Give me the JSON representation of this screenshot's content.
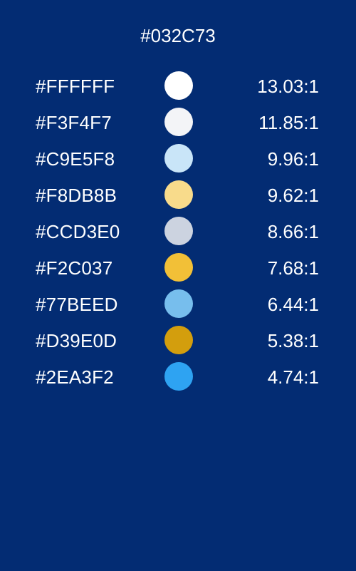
{
  "background": "#032C73",
  "title": "#032C73",
  "rows": [
    {
      "hex": "#FFFFFF",
      "color": "#FFFFFF",
      "ratio": "13.03:1"
    },
    {
      "hex": "#F3F4F7",
      "color": "#F3F4F7",
      "ratio": "11.85:1"
    },
    {
      "hex": "#C9E5F8",
      "color": "#C9E5F8",
      "ratio": "9.96:1"
    },
    {
      "hex": "#F8DB8B",
      "color": "#F8DB8B",
      "ratio": "9.62:1"
    },
    {
      "hex": "#CCD3E0",
      "color": "#CCD3E0",
      "ratio": "8.66:1"
    },
    {
      "hex": "#F2C037",
      "color": "#F2C037",
      "ratio": "7.68:1"
    },
    {
      "hex": "#77BEED",
      "color": "#77BEED",
      "ratio": "6.44:1"
    },
    {
      "hex": "#D39E0D",
      "color": "#D39E0D",
      "ratio": "5.38:1"
    },
    {
      "hex": "#2EA3F2",
      "color": "#2EA3F2",
      "ratio": "4.74:1"
    }
  ]
}
